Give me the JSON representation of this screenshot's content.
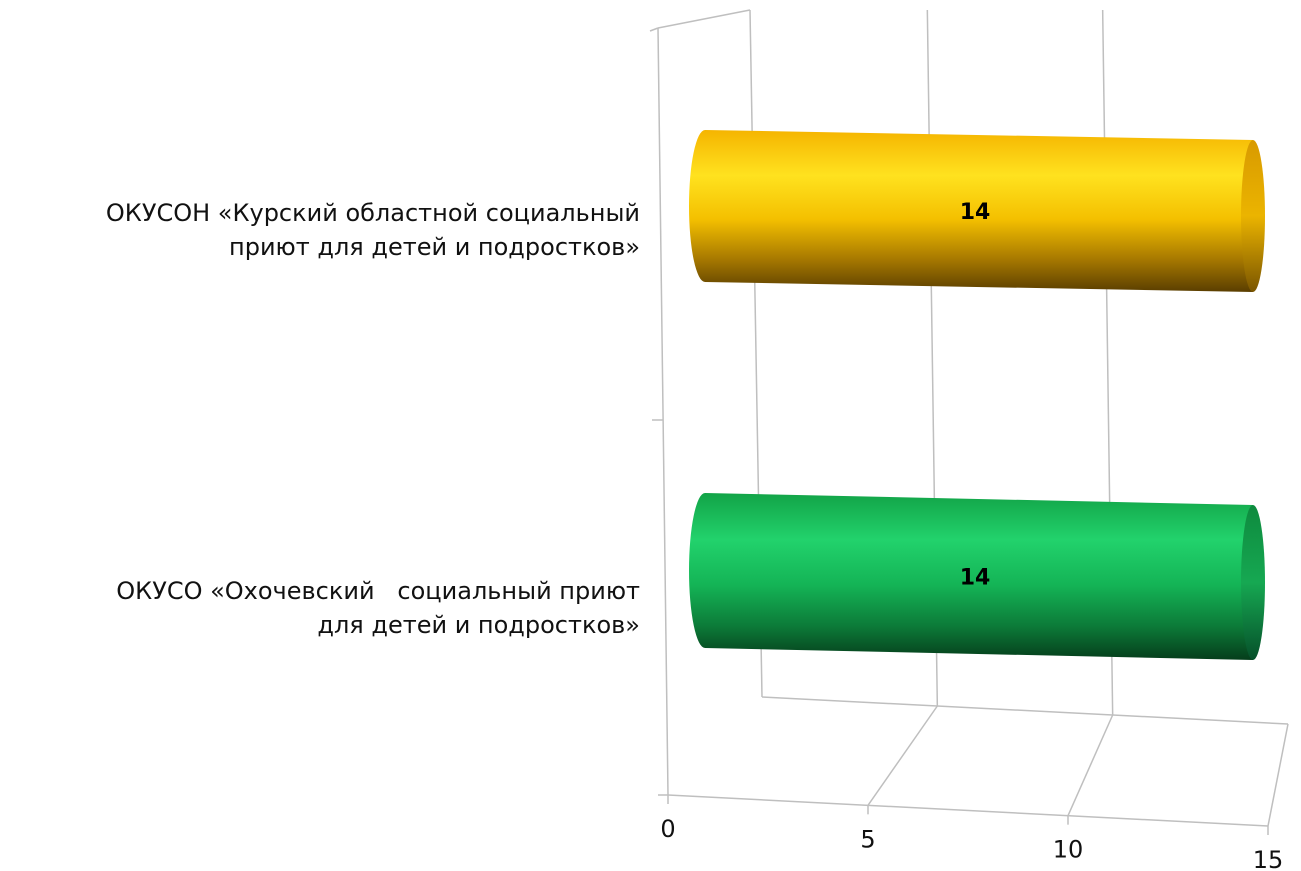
{
  "chart_data": {
    "type": "bar",
    "orientation": "horizontal",
    "style": "3d-cylinder",
    "categories": [
      "ОКУСОН «Курский областной социальный\nприют для детей и подростков»",
      "ОКУСО «Охочевский   социальный приют\nдля детей и подростков»"
    ],
    "values": [
      14,
      14
    ],
    "data_labels": [
      "14",
      "14"
    ],
    "bar_colors": [
      "#F2B705",
      "#1FC060"
    ],
    "x_ticks": [
      "0",
      "5",
      "10",
      "15"
    ],
    "xlim": [
      0,
      15
    ],
    "grid": true,
    "legend": "none"
  }
}
